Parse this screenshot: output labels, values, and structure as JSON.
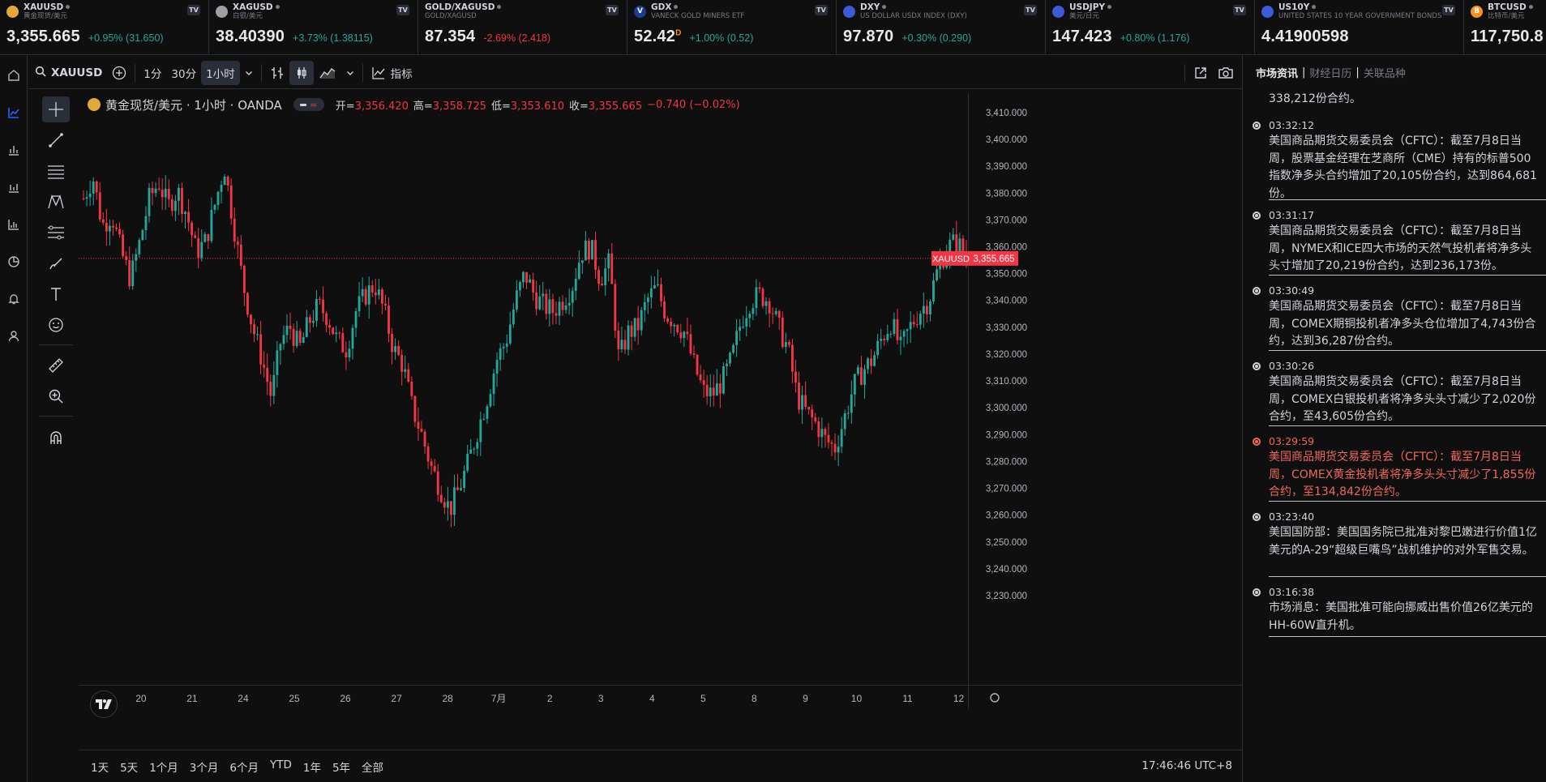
{
  "tickers": [
    {
      "symbol": "XAUUSD",
      "desc": "黄金现货/美元",
      "price": "3,355.665",
      "change": "+0.95% (31.650)",
      "dir": "up",
      "logo_color": "#e0a93a",
      "logo": "coins-icon"
    },
    {
      "symbol": "XAGUSD",
      "desc": "白银/美元",
      "price": "38.40390",
      "change": "+3.73% (1.38115)",
      "dir": "up",
      "logo_color": "#9aa0a6",
      "logo": "coins-icon"
    },
    {
      "symbol": "GOLD/XAGUSD",
      "desc": "GOLD/XAGUSD",
      "price": "87.354",
      "change": "-2.69% (2.418)",
      "dir": "down",
      "logo_color": "",
      "logo": ""
    },
    {
      "symbol": "GDX",
      "desc": "VANECK GOLD MINERS ETF",
      "price": "52.42",
      "change": "+1.00% (0.52)",
      "dir": "up",
      "logo_color": "#1c3d8f",
      "logo": "V",
      "suffix": "D"
    },
    {
      "symbol": "DXY",
      "desc": "US DOLLAR USDX INDEX (DXY)",
      "price": "97.870",
      "change": "+0.30% (0.290)",
      "dir": "up",
      "logo_color": "#3c5bd9",
      "logo": "us-flag-icon"
    },
    {
      "symbol": "USDJPY",
      "desc": "美元/日元",
      "price": "147.423",
      "change": "+0.80% (1.176)",
      "dir": "up",
      "logo_color": "#3c5bd9",
      "logo": "us-jp-flag-icon"
    },
    {
      "symbol": "US10Y",
      "desc": "UNITED STATES 10 YEAR GOVERNMENT BONDS",
      "price": "4.41900598",
      "change": "",
      "dir": "up",
      "logo_color": "#3c5bd9",
      "logo": "us-flag-icon"
    },
    {
      "symbol": "BTCUSD",
      "desc": "比特币/美元",
      "price": "117,750.8",
      "change": "",
      "dir": "up",
      "logo_color": "#f7931a",
      "logo": "B"
    }
  ],
  "toolbar": {
    "symbol": "XAUUSD",
    "intervals": [
      "1分",
      "30分",
      "1小时"
    ],
    "indicators_label": "指标"
  },
  "legend": {
    "title": "黄金现货/美元 · 1小时 · OANDA",
    "open_label": "开=",
    "open": "3,356.420",
    "high_label": "高=",
    "high": "3,358.725",
    "low_label": "低=",
    "low": "3,353.610",
    "close_label": "收=",
    "close": "3,355.665",
    "change": "−0.740 (−0.02%)"
  },
  "price_tag": {
    "symbol": "XAUUSD",
    "price": "3,355.665"
  },
  "chart_data": {
    "type": "candlestick",
    "symbol": "XAUUSD",
    "interval": "1小时",
    "ylim": [
      3230,
      3413
    ],
    "yticks": [
      "3,410.000",
      "3,400.000",
      "3,390.000",
      "3,380.000",
      "3,370.000",
      "3,360.000",
      "3,350.000",
      "3,340.000",
      "3,330.000",
      "3,320.000",
      "3,310.000",
      "3,300.000",
      "3,290.000",
      "3,280.000",
      "3,270.000",
      "3,260.000",
      "3,250.000",
      "3,240.000",
      "3,230.000"
    ],
    "xticks": [
      "20",
      "21",
      "24",
      "25",
      "26",
      "27",
      "28",
      "7月",
      "2",
      "3",
      "4",
      "5",
      "8",
      "9",
      "10",
      "11",
      "12"
    ],
    "path": [
      3378,
      3386,
      3368,
      3372,
      3358,
      3348,
      3362,
      3378,
      3384,
      3375,
      3381,
      3372,
      3358,
      3362,
      3376,
      3390,
      3368,
      3346,
      3330,
      3318,
      3304,
      3325,
      3330,
      3322,
      3332,
      3338,
      3334,
      3325,
      3322,
      3336,
      3342,
      3346,
      3336,
      3322,
      3316,
      3300,
      3290,
      3278,
      3270,
      3262,
      3270,
      3280,
      3292,
      3304,
      3318,
      3325,
      3340,
      3350,
      3342,
      3338,
      3336,
      3340,
      3345,
      3358,
      3360,
      3348,
      3354,
      3318,
      3328,
      3330,
      3340,
      3345,
      3335,
      3332,
      3328,
      3316,
      3306,
      3305,
      3310,
      3318,
      3332,
      3340,
      3342,
      3340,
      3330,
      3322,
      3304,
      3298,
      3294,
      3288,
      3285,
      3296,
      3308,
      3314,
      3318,
      3326,
      3332,
      3322,
      3330,
      3336,
      3340,
      3352,
      3360,
      3362,
      3356
    ],
    "up_color": "#26a69a",
    "down_color": "#f23645"
  },
  "range_buttons": [
    "1天",
    "5天",
    "1个月",
    "3个月",
    "6个月",
    "YTD",
    "1年",
    "5年",
    "全部"
  ],
  "clock": "17:46:46 UTC+8",
  "news": {
    "tabs": [
      "市场资讯",
      "财经日历",
      "关联品种"
    ],
    "first_partial": "338,212份合约。",
    "items": [
      {
        "time": "03:32:12",
        "text": "美国商品期货交易委员会（CFTC）：截至7月8日当周，股票基金经理在芝商所（CME）持有的标普500指数净多头合约增加了20,105份合约，达到864,681份。",
        "highlight": false
      },
      {
        "time": "03:31:17",
        "text": "美国商品期货交易委员会（CFTC）：截至7月8日当周，NYMEX和ICE四大市场的天然气投机者将净多头头寸增加了20,219份合约，达到236,173份。",
        "highlight": false
      },
      {
        "time": "03:30:49",
        "text": "美国商品期货交易委员会（CFTC）：截至7月8日当周，COMEX期铜投机者净多头仓位增加了4,743份合约，达到36,287份合约。",
        "highlight": false
      },
      {
        "time": "03:30:26",
        "text": "美国商品期货交易委员会（CFTC）：截至7月8日当周，COMEX白银投机者将净多头头寸减少了2,020份合约，至43,605份合约。",
        "highlight": false
      },
      {
        "time": "03:29:59",
        "text": "美国商品期货交易委员会（CFTC）：截至7月8日当周，COMEX黄金投机者将净多头头寸减少了1,855份合约，至134,842份合约。",
        "highlight": true
      },
      {
        "time": "03:23:40",
        "text": "美国国防部：美国国务院已批准对黎巴嫩进行价值1亿美元的A-29“超级巨嘴鸟”战机维护的对外军售交易。",
        "highlight": false
      },
      {
        "time": "03:16:38",
        "text": "市场消息：美国批准可能向挪威出售价值26亿美元的HH-60W直升机。",
        "highlight": false
      }
    ]
  }
}
